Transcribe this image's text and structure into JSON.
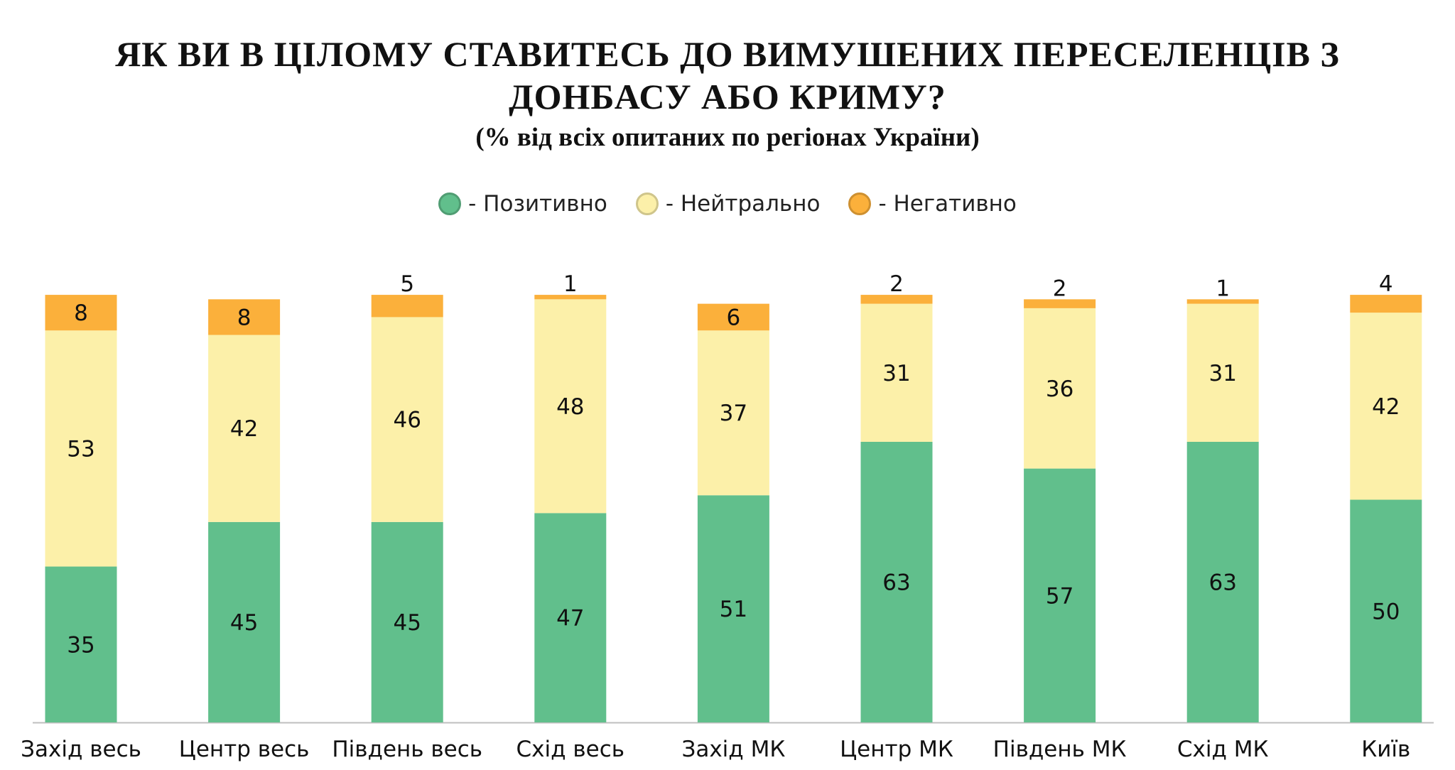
{
  "title": "ЯК ВИ В ЦІЛОМУ СТАВИТЕСЬ ДО ВИМУШЕНИХ ПЕРЕСЕЛЕНЦІВ З ДОНБАСУ АБО КРИМУ?",
  "subtitle": "(% від всіх опитаних по регіонах України)",
  "legend": [
    {
      "label": "- Позитивно",
      "color": "#61bf8c"
    },
    {
      "label": "- Нейтрально",
      "color": "#fcf0a9"
    },
    {
      "label": "- Негативно",
      "color": "#fbb03b"
    }
  ],
  "chart_data": {
    "type": "bar",
    "stacked": true,
    "title": "ЯК ВИ В ЦІЛОМУ СТАВИТЕСЬ ДО ВИМУШЕНИХ ПЕРЕСЕЛЕНЦІВ З ДОНБАСУ АБО КРИМУ?",
    "subtitle": "(% від всіх опитаних по регіонах України)",
    "categories": [
      "Захід весь",
      "Центр весь",
      "Південь весь",
      "Схід весь",
      "Захід МК",
      "Центр МК",
      "Південь МК",
      "Схід МК",
      "Київ"
    ],
    "series": [
      {
        "name": "Позитивно",
        "color": "#61bf8c",
        "values": [
          35,
          45,
          45,
          47,
          51,
          63,
          57,
          63,
          50
        ]
      },
      {
        "name": "Нейтрально",
        "color": "#fcf0a9",
        "values": [
          53,
          42,
          46,
          48,
          37,
          31,
          36,
          31,
          42
        ]
      },
      {
        "name": "Негативно",
        "color": "#fbb03b",
        "values": [
          8,
          8,
          5,
          1,
          6,
          2,
          2,
          1,
          4
        ]
      }
    ],
    "ylim": [
      0,
      100
    ],
    "grid": false,
    "legend_position": "top-center"
  }
}
